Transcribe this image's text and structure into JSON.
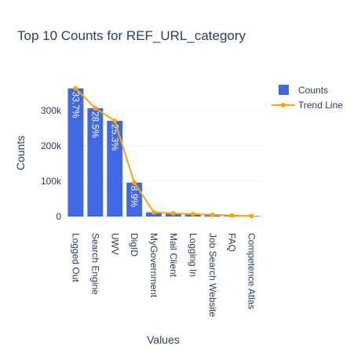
{
  "chart_data": {
    "type": "bar",
    "title": "Top 10 Counts for REF_URL_category",
    "xlabel": "Values",
    "ylabel": "Counts",
    "categories": [
      "Logged Out",
      "Search Engine",
      "UWV",
      "DigID",
      "MyGovernment",
      "Mail Client",
      "Logging In",
      "Job Search Website",
      "FAQ",
      "Competence Atlas"
    ],
    "series": [
      {
        "name": "Counts",
        "type": "bar",
        "color": "#4169e1",
        "values": [
          363000,
          307000,
          271000,
          96000,
          12000,
          9000,
          7000,
          5000,
          3000,
          1500
        ],
        "labels": [
          "33.7%",
          "28.5%",
          "25.3%",
          "8.9%",
          "",
          "",
          "",
          "",
          "",
          ""
        ]
      },
      {
        "name": "Trend Line",
        "type": "line",
        "color": "#ffa500",
        "values": [
          363000,
          307000,
          271000,
          96000,
          12000,
          9000,
          7000,
          5000,
          3000,
          1500
        ]
      }
    ],
    "ylim": [
      0,
      380000
    ],
    "yticks": [
      0,
      100000,
      200000,
      300000
    ],
    "ytick_labels": [
      "0",
      "100k",
      "200k",
      "300k"
    ],
    "grid": true,
    "legend_position": "top-right"
  }
}
